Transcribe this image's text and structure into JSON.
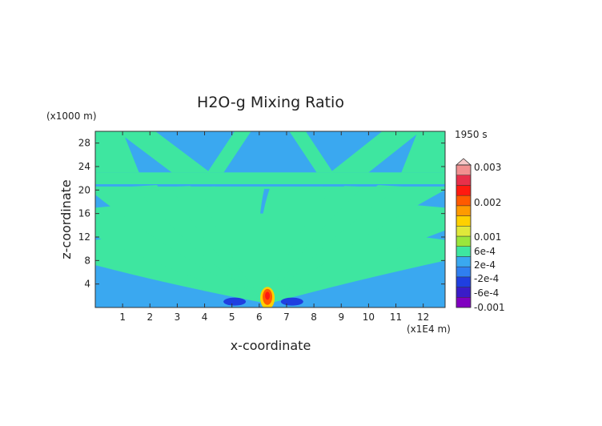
{
  "chart_data": {
    "type": "heatmap",
    "title": "H2O-g Mixing Ratio",
    "xlabel": "x-coordinate",
    "ylabel": "z-coordinate",
    "x_unit": "(x1E4 m)",
    "y_unit": "(x1000 m)",
    "time_label": "1950 s",
    "xlim": [
      0,
      12.8
    ],
    "ylim": [
      0,
      30
    ],
    "x_ticks": [
      1,
      2,
      3,
      4,
      5,
      6,
      7,
      8,
      9,
      10,
      11,
      12
    ],
    "y_ticks": [
      4,
      8,
      12,
      16,
      20,
      24,
      28
    ],
    "colorbar": {
      "labels": [
        "0.003",
        "0.002",
        "0.001",
        "6e-4",
        "2e-4",
        "-2e-4",
        "-6e-4",
        "-0.001"
      ],
      "levels": [
        -0.001,
        -0.0008,
        -0.0006,
        -0.0004,
        -0.0002,
        0.0002,
        0.0004,
        0.0006,
        0.0008,
        0.001,
        0.0015,
        0.002,
        0.0025,
        0.003
      ],
      "colors": [
        "#8000c0",
        "#3a1cc8",
        "#1f3fe0",
        "#2f7ff0",
        "#3aa8f0",
        "#3ee6a0",
        "#9ae63c",
        "#e0e83a",
        "#ffd000",
        "#ff9a00",
        "#ff5a00",
        "#ff1a10",
        "#e8304a",
        "#f29090",
        "#f7c8c8"
      ]
    },
    "background_value": 0.0,
    "field_note": "values near 0 (blue) with streaks of ~3e-4 (green) fanning out from a source near x=6.3, z=1; max ~0.002 at the core, min ~ -8e-4 in lobes at x=5.1 and x=7.2"
  }
}
